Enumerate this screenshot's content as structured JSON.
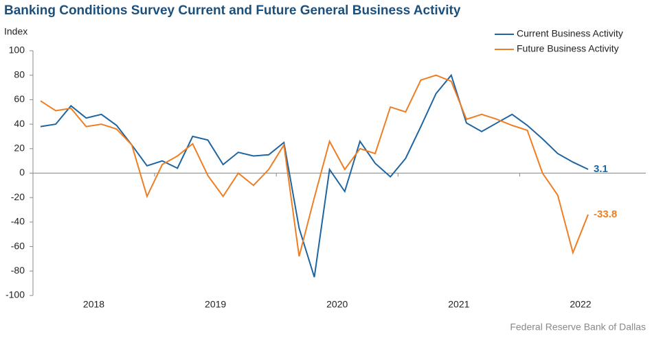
{
  "chart_data": {
    "type": "line",
    "title": "Banking Conditions Survey Current and Future General Business Activity",
    "y_label": "Index",
    "source": "Federal Reserve Bank of Dallas",
    "categories": [
      null,
      null,
      null,
      "2018",
      null,
      null,
      null,
      null,
      null,
      null,
      null,
      "2019",
      null,
      null,
      null,
      null,
      null,
      null,
      null,
      "2020",
      null,
      null,
      null,
      null,
      null,
      null,
      null,
      "2021",
      null,
      null,
      null,
      null,
      null,
      null,
      null,
      "2022",
      null
    ],
    "series": [
      {
        "name": "Current Business Activity",
        "color": "#1d64a0",
        "values": [
          38,
          40,
          55,
          45,
          48,
          39,
          23,
          6,
          10,
          4,
          30,
          27,
          7,
          17,
          14,
          15,
          25,
          -45,
          -85,
          3,
          -15,
          26,
          8,
          -3,
          12,
          38,
          65,
          80,
          41,
          34,
          41,
          48,
          39,
          28,
          16,
          9,
          3.1
        ]
      },
      {
        "name": "Future Business Activity",
        "color": "#ef7d22",
        "values": [
          59,
          51,
          53,
          38,
          40,
          36,
          23,
          -19,
          7,
          14,
          24,
          -2,
          -19,
          0,
          -10,
          3,
          23,
          -68,
          -20,
          26,
          3,
          20,
          16,
          54,
          50,
          76,
          80,
          75,
          44,
          48,
          44,
          39,
          35,
          0,
          -18,
          -65,
          -33.8
        ]
      }
    ],
    "ylim": [
      -100,
      100
    ],
    "yticks": [
      -100,
      -80,
      -60,
      -40,
      -20,
      0,
      20,
      40,
      60,
      80,
      100
    ],
    "grid": false,
    "legend": "top-right"
  }
}
